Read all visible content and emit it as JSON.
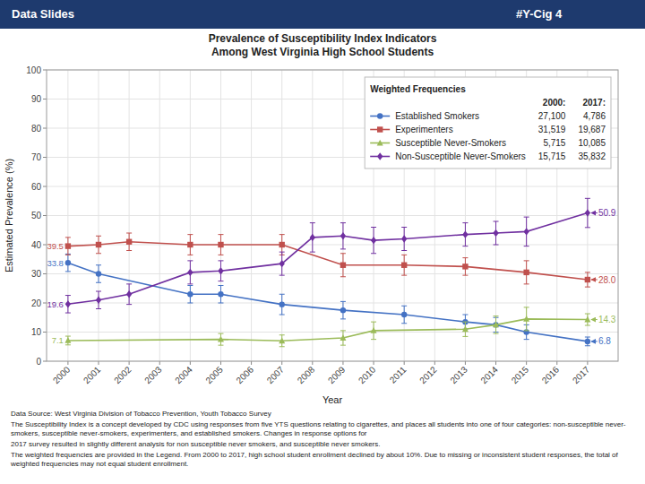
{
  "chart_data": {
    "type": "line",
    "header": "Data Slides",
    "slide_number": "#Y-Cig 4",
    "title": "Prevalence of Susceptibility Index Indicators",
    "subtitle": "Among West Virginia High School Students",
    "xlabel": "Year",
    "ylabel": "Estimated Prevalence (%)",
    "xlim": [
      1999.3,
      2018.0
    ],
    "ylim": [
      0,
      100
    ],
    "xticks": [
      2000,
      2001,
      2002,
      2003,
      2004,
      2005,
      2006,
      2007,
      2008,
      2009,
      2010,
      2011,
      2012,
      2013,
      2014,
      2015,
      2016,
      2017
    ],
    "yticks": [
      0,
      10,
      20,
      30,
      40,
      50,
      60,
      70,
      80,
      90,
      100
    ],
    "grid": true,
    "legend": "upper right",
    "legend_title": "Weighted Frequencies",
    "legend_columns": [
      "2000:",
      "2017:"
    ],
    "series": [
      {
        "name": "Established Smokers",
        "color": "#4472c4",
        "marker": "circle",
        "x": [
          2000,
          2001,
          2004,
          2005,
          2007,
          2009,
          2011,
          2013,
          2014,
          2015,
          2017
        ],
        "values": [
          33.8,
          30.0,
          23.0,
          23.0,
          19.5,
          17.5,
          16.0,
          13.5,
          12.5,
          10.0,
          6.8
        ],
        "errors": [
          3.0,
          3.0,
          3.0,
          3.0,
          3.5,
          3.0,
          3.0,
          2.5,
          2.5,
          2.5,
          1.5
        ],
        "weighted_frequencies": [
          {
            "value": 27100,
            "label": "27,100"
          },
          {
            "value": 4786,
            "label": "4,786"
          }
        ]
      },
      {
        "name": "Experimenters",
        "color": "#c0504d",
        "marker": "square",
        "x": [
          2000,
          2001,
          2002,
          2004,
          2005,
          2007,
          2009,
          2011,
          2013,
          2015,
          2017
        ],
        "values": [
          39.5,
          40.0,
          41.0,
          40.0,
          40.0,
          40.0,
          33.0,
          33.0,
          32.5,
          30.5,
          28.0
        ],
        "errors": [
          3.0,
          3.0,
          3.0,
          3.5,
          3.5,
          3.5,
          4.0,
          3.5,
          3.0,
          4.0,
          2.5
        ],
        "weighted_frequencies": [
          {
            "value": 31519,
            "label": "31,519"
          },
          {
            "value": 19687,
            "label": "19,687"
          }
        ]
      },
      {
        "name": "Susceptible Never-Smokers",
        "color": "#9bbb59",
        "marker": "triangle",
        "x": [
          2000,
          2005,
          2007,
          2009,
          2010,
          2013,
          2014,
          2015,
          2017
        ],
        "values": [
          7.1,
          7.5,
          7.0,
          8.0,
          10.5,
          11.0,
          12.5,
          14.5,
          14.3
        ],
        "errors": [
          1.5,
          2.0,
          2.0,
          2.5,
          3.0,
          2.5,
          3.0,
          4.0,
          2.0
        ],
        "weighted_frequencies": [
          {
            "value": 5715,
            "label": "5,715"
          },
          {
            "value": 10085,
            "label": "10,085"
          }
        ]
      },
      {
        "name": "Non-Susceptible Never-Smokers",
        "color": "#7030a0",
        "marker": "diamond",
        "x": [
          2000,
          2001,
          2002,
          2004,
          2005,
          2007,
          2008,
          2009,
          2010,
          2011,
          2013,
          2014,
          2015,
          2017
        ],
        "values": [
          19.6,
          21.0,
          23.0,
          30.5,
          31.0,
          33.5,
          42.5,
          43.0,
          41.5,
          42.0,
          43.5,
          44.0,
          44.5,
          50.9
        ],
        "errors": [
          3.0,
          3.0,
          3.5,
          4.0,
          3.5,
          4.0,
          5.0,
          4.5,
          4.5,
          4.0,
          4.0,
          4.0,
          5.0,
          5.0
        ],
        "weighted_frequencies": [
          {
            "value": 15715,
            "label": "15,715"
          },
          {
            "value": 35832,
            "label": "35,832"
          }
        ]
      }
    ],
    "annotations": [
      {
        "text": "50.9",
        "x": 2017,
        "y": 50.9,
        "color": "#7030a0"
      },
      {
        "text": "28.0",
        "x": 2017,
        "y": 28.0,
        "color": "#c0504d"
      },
      {
        "text": "14.3",
        "x": 2017,
        "y": 14.3,
        "color": "#9bbb59"
      },
      {
        "text": "6.8",
        "x": 2017,
        "y": 6.8,
        "color": "#4472c4"
      },
      {
        "text": "39.5",
        "x": 2000,
        "y": 39.5,
        "color": "#c0504d"
      },
      {
        "text": "33.8",
        "x": 2000,
        "y": 33.8,
        "color": "#4472c4"
      },
      {
        "text": "19.6",
        "x": 2000,
        "y": 19.6,
        "color": "#7030a0"
      },
      {
        "text": "7.1",
        "x": 2000,
        "y": 7.1,
        "color": "#9bbb59"
      }
    ],
    "footnotes": [
      "Data Source: West Virginia Division of Tobacco Prevention, Youth Tobacco Survey",
      "The Susceptibility Index is a concept developed by CDC using responses from five YTS questions relating to cigarettes, and places all students into one of four categories: non-susceptible never-smokers, susceptible never-smokers, experimenters, and established smokers. Changes in response options for",
      "2017 survey resulted in slightly different analysis for non susceptible never smokers, and susceptible never smokers.",
      "The weighted frequencies are provided in the Legend. From 2000 to 2017, high school student enrollment declined by about 10%. Due to missing or inconsistent student responses, the total of weighted frequencies may not equal student enrollment."
    ]
  }
}
